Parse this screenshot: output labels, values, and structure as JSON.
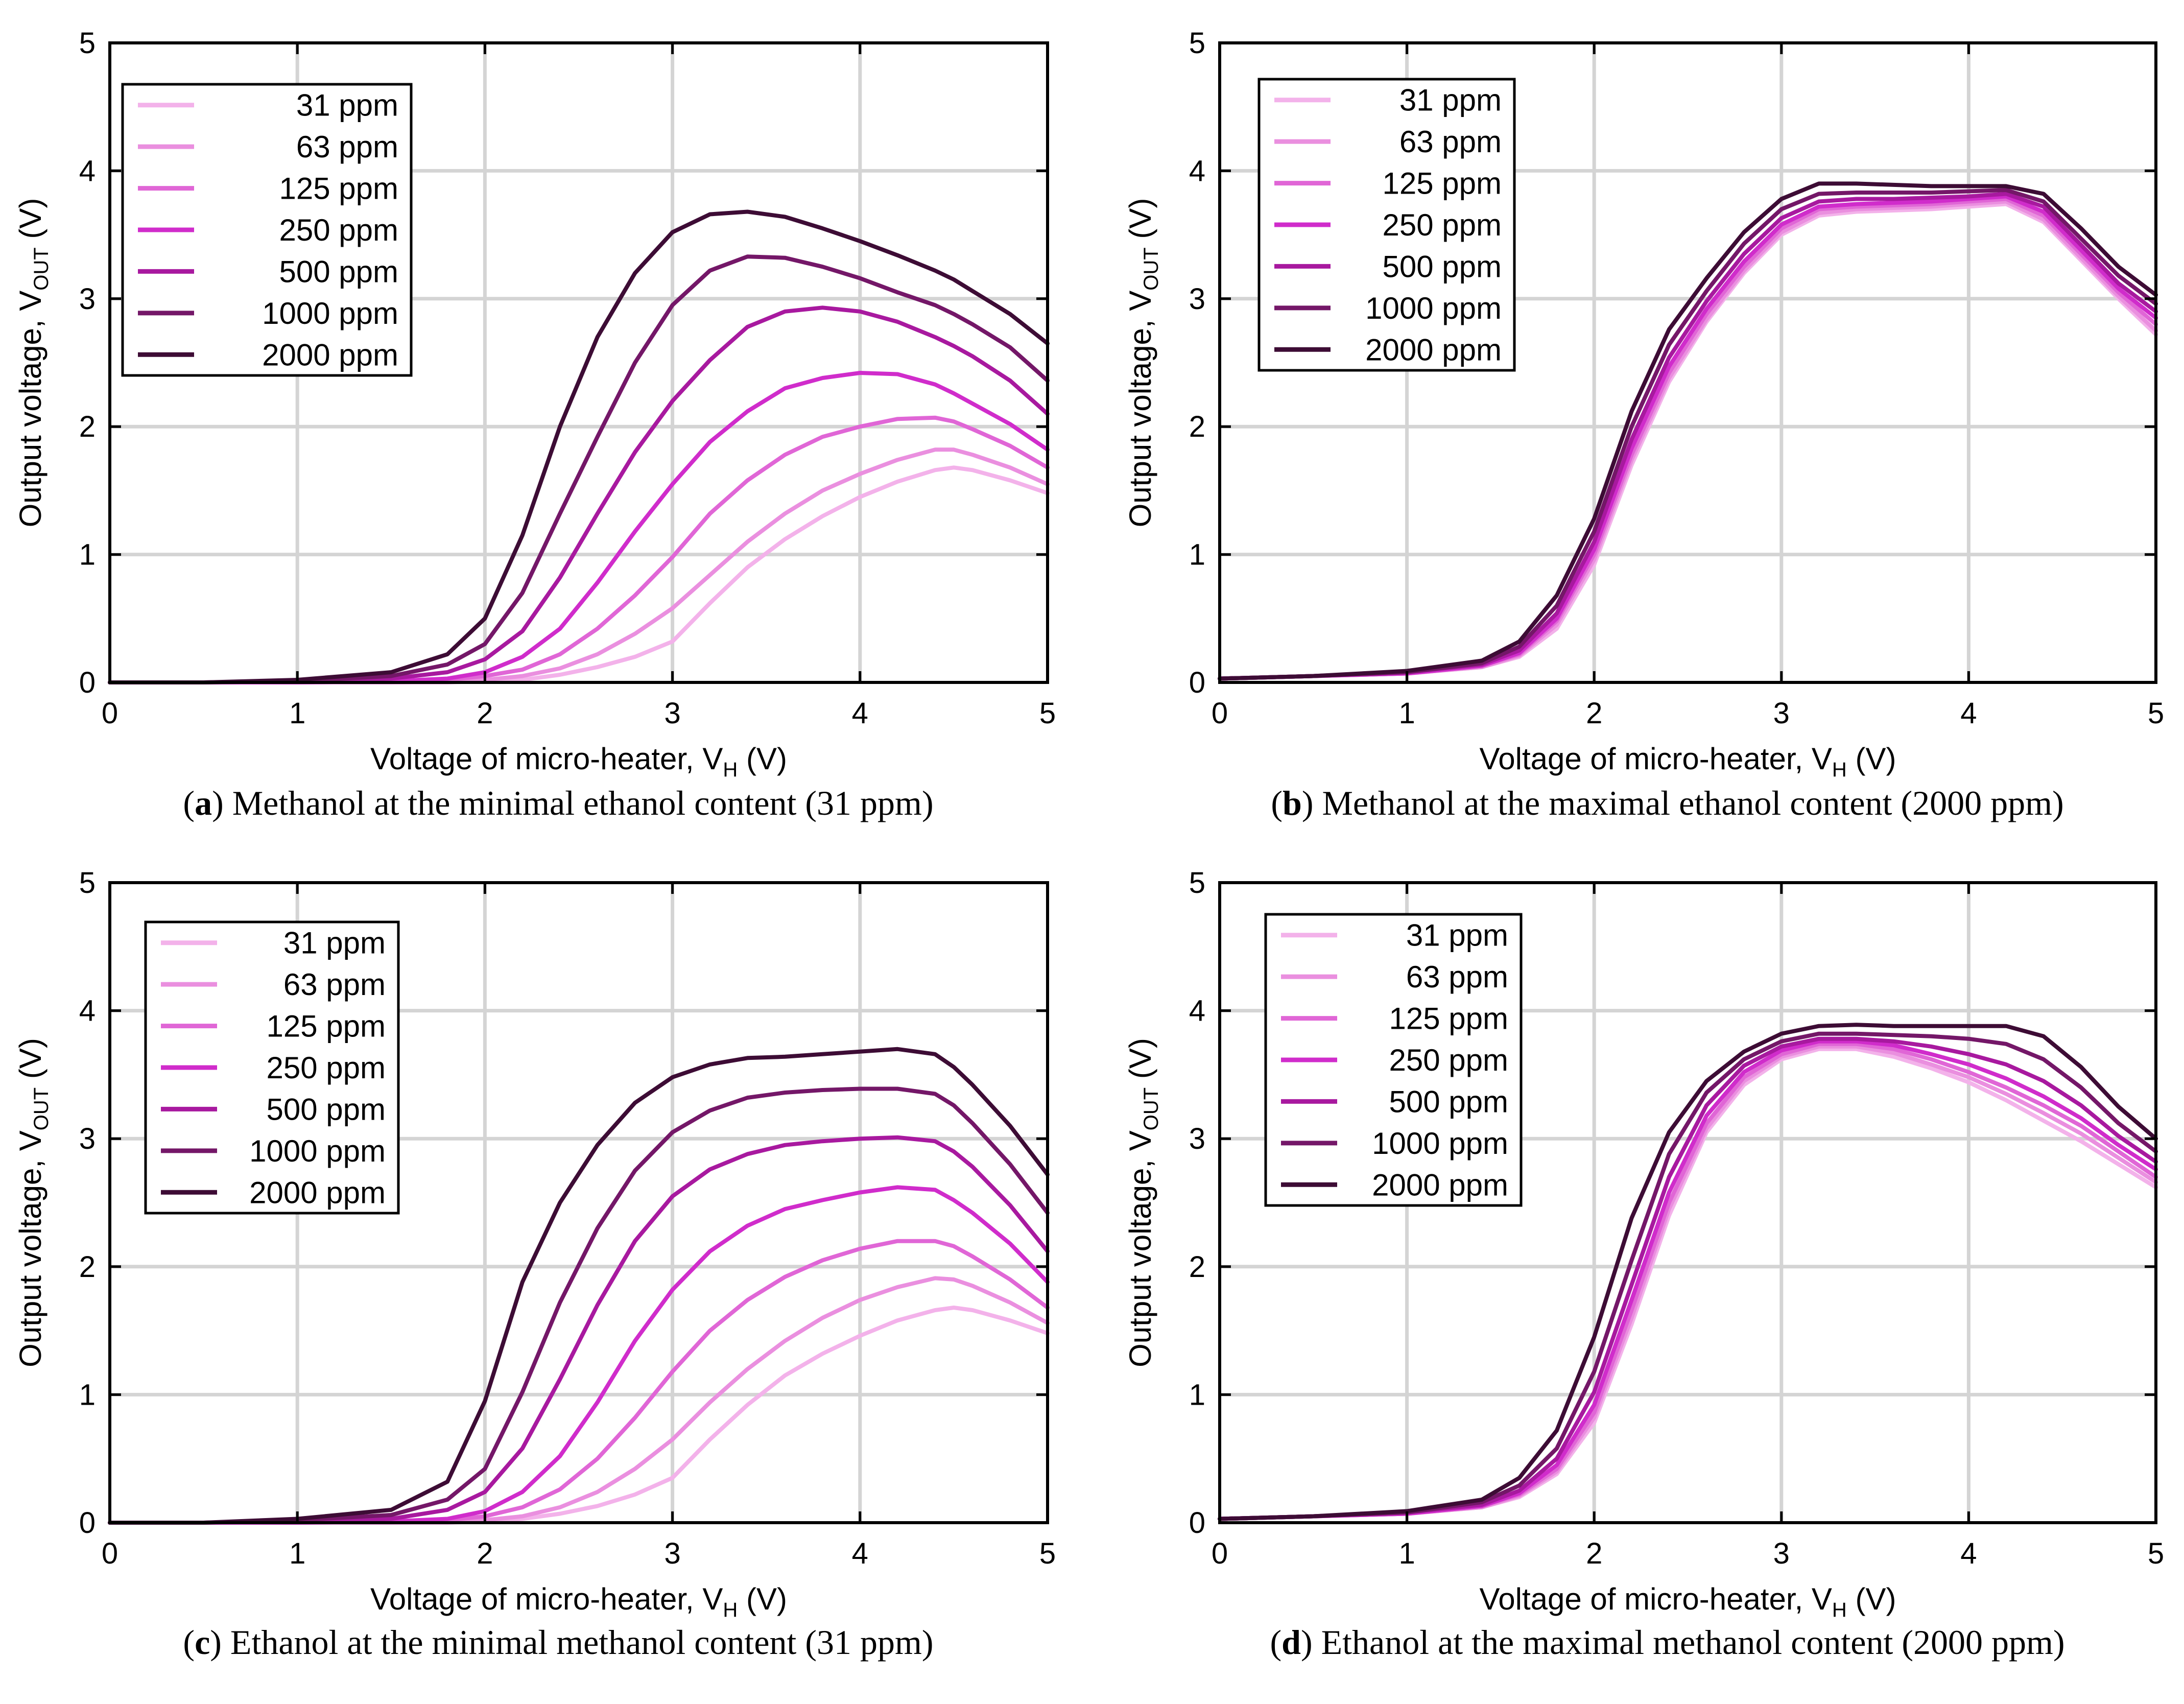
{
  "colors": {
    "ppm31": "#f3b2ea",
    "ppm63": "#ea8fdf",
    "ppm125": "#e066d6",
    "ppm250": "#d02ccb",
    "ppm500": "#a8199f",
    "ppm1000": "#741768",
    "ppm2000": "#3d0c35",
    "grid": "#d4d4d4",
    "axis": "#000000"
  },
  "chart_data": [
    {
      "type": "line",
      "panel_letter": "a",
      "caption": "Methanol at the minimal ethanol content (31 ppm)",
      "xlabel": "Voltage of micro-heater, V",
      "xlabel_sub": "H",
      "xlabel_tail": " (V)",
      "ylabel": "Output voltage,  V",
      "ylabel_sub": "OUT",
      "ylabel_tail": " (V)",
      "xlim": [
        0,
        5
      ],
      "ylim": [
        0,
        5
      ],
      "xticks": [
        "0",
        "1",
        "2",
        "3",
        "4",
        "5"
      ],
      "yticks": [
        "0",
        "1",
        "2",
        "3",
        "4",
        "5"
      ],
      "grid": true,
      "legend_position": "top-left",
      "x": [
        0,
        0.5,
        1.0,
        1.5,
        1.8,
        2.0,
        2.2,
        2.4,
        2.6,
        2.8,
        3.0,
        3.2,
        3.4,
        3.6,
        3.8,
        4.0,
        4.2,
        4.4,
        4.5,
        4.6,
        4.8,
        5.0
      ],
      "series": [
        {
          "name": "31 ppm",
          "values": [
            0,
            0,
            0,
            0,
            0,
            0.01,
            0.02,
            0.06,
            0.12,
            0.2,
            0.32,
            0.62,
            0.9,
            1.12,
            1.3,
            1.45,
            1.57,
            1.66,
            1.68,
            1.66,
            1.58,
            1.48
          ]
        },
        {
          "name": "63 ppm",
          "values": [
            0,
            0,
            0,
            0,
            0.01,
            0.02,
            0.05,
            0.11,
            0.22,
            0.38,
            0.58,
            0.84,
            1.1,
            1.32,
            1.5,
            1.63,
            1.74,
            1.82,
            1.82,
            1.78,
            1.68,
            1.55
          ]
        },
        {
          "name": "125 ppm",
          "values": [
            0,
            0,
            0,
            0.01,
            0.02,
            0.05,
            0.1,
            0.22,
            0.42,
            0.68,
            0.98,
            1.32,
            1.58,
            1.78,
            1.92,
            2.0,
            2.06,
            2.07,
            2.04,
            1.98,
            1.85,
            1.68
          ]
        },
        {
          "name": "250 ppm",
          "values": [
            0,
            0,
            0,
            0.01,
            0.03,
            0.08,
            0.2,
            0.42,
            0.78,
            1.18,
            1.55,
            1.88,
            2.12,
            2.3,
            2.38,
            2.42,
            2.41,
            2.33,
            2.26,
            2.18,
            2.02,
            1.82
          ]
        },
        {
          "name": "500 ppm",
          "values": [
            0,
            0,
            0.01,
            0.03,
            0.08,
            0.18,
            0.4,
            0.82,
            1.32,
            1.8,
            2.2,
            2.52,
            2.78,
            2.9,
            2.93,
            2.9,
            2.82,
            2.7,
            2.63,
            2.55,
            2.36,
            2.1
          ]
        },
        {
          "name": "1000 ppm",
          "values": [
            0,
            0,
            0.01,
            0.05,
            0.14,
            0.3,
            0.7,
            1.32,
            1.92,
            2.5,
            2.95,
            3.22,
            3.33,
            3.32,
            3.25,
            3.16,
            3.05,
            2.95,
            2.88,
            2.8,
            2.62,
            2.36
          ]
        },
        {
          "name": "2000 ppm",
          "values": [
            0,
            0,
            0.02,
            0.08,
            0.22,
            0.5,
            1.15,
            2.0,
            2.7,
            3.2,
            3.52,
            3.66,
            3.68,
            3.64,
            3.55,
            3.45,
            3.34,
            3.22,
            3.15,
            3.06,
            2.88,
            2.65
          ]
        }
      ]
    },
    {
      "type": "line",
      "panel_letter": "b",
      "caption": "Methanol at the maximal ethanol content (2000 ppm)",
      "xlabel": "Voltage of micro-heater, V",
      "xlabel_sub": "H",
      "xlabel_tail": " (V)",
      "ylabel": "Output voltage,  V",
      "ylabel_sub": "OUT",
      "ylabel_tail": " (V)",
      "xlim": [
        0,
        5
      ],
      "ylim": [
        0,
        5
      ],
      "xticks": [
        "0",
        "1",
        "2",
        "3",
        "4",
        "5"
      ],
      "yticks": [
        "0",
        "1",
        "2",
        "3",
        "4",
        "5"
      ],
      "grid": true,
      "legend_position": "top-left",
      "x": [
        0,
        0.5,
        1.0,
        1.4,
        1.6,
        1.8,
        2.0,
        2.2,
        2.4,
        2.6,
        2.8,
        3.0,
        3.2,
        3.4,
        3.6,
        3.8,
        4.0,
        4.2,
        4.4,
        4.6,
        4.8,
        5.0
      ],
      "series": [
        {
          "name": "31 ppm",
          "values": [
            0.03,
            0.05,
            0.07,
            0.12,
            0.2,
            0.42,
            0.92,
            1.7,
            2.35,
            2.82,
            3.2,
            3.5,
            3.65,
            3.68,
            3.69,
            3.7,
            3.72,
            3.74,
            3.6,
            3.3,
            3.0,
            2.72
          ]
        },
        {
          "name": "63 ppm",
          "values": [
            0.03,
            0.05,
            0.07,
            0.12,
            0.21,
            0.45,
            0.96,
            1.74,
            2.38,
            2.84,
            3.22,
            3.52,
            3.67,
            3.7,
            3.71,
            3.72,
            3.74,
            3.76,
            3.62,
            3.32,
            3.02,
            2.75
          ]
        },
        {
          "name": "125 ppm",
          "values": [
            0.03,
            0.05,
            0.07,
            0.13,
            0.22,
            0.48,
            1.0,
            1.78,
            2.42,
            2.88,
            3.25,
            3.55,
            3.7,
            3.72,
            3.73,
            3.74,
            3.76,
            3.78,
            3.65,
            3.35,
            3.05,
            2.8
          ]
        },
        {
          "name": "250 ppm",
          "values": [
            0.03,
            0.05,
            0.07,
            0.13,
            0.23,
            0.5,
            1.04,
            1.83,
            2.47,
            2.92,
            3.29,
            3.58,
            3.72,
            3.74,
            3.75,
            3.76,
            3.78,
            3.8,
            3.68,
            3.38,
            3.08,
            2.85
          ]
        },
        {
          "name": "500 ppm",
          "values": [
            0.03,
            0.05,
            0.08,
            0.14,
            0.25,
            0.54,
            1.1,
            1.9,
            2.54,
            2.98,
            3.35,
            3.63,
            3.76,
            3.78,
            3.78,
            3.79,
            3.8,
            3.82,
            3.72,
            3.42,
            3.12,
            2.9
          ]
        },
        {
          "name": "1000 ppm",
          "values": [
            0.03,
            0.05,
            0.08,
            0.15,
            0.28,
            0.6,
            1.18,
            2.0,
            2.64,
            3.06,
            3.43,
            3.7,
            3.82,
            3.83,
            3.83,
            3.83,
            3.84,
            3.85,
            3.76,
            3.47,
            3.18,
            2.96
          ]
        },
        {
          "name": "2000 ppm",
          "values": [
            0.03,
            0.05,
            0.09,
            0.17,
            0.32,
            0.68,
            1.28,
            2.12,
            2.76,
            3.16,
            3.52,
            3.78,
            3.9,
            3.9,
            3.89,
            3.88,
            3.88,
            3.88,
            3.82,
            3.55,
            3.25,
            3.03
          ]
        }
      ]
    },
    {
      "type": "line",
      "panel_letter": "c",
      "caption": "Ethanol at the minimal methanol content (31 ppm)",
      "xlabel": "Voltage of micro-heater, V",
      "xlabel_sub": "H",
      "xlabel_tail": " (V)",
      "ylabel": "Output voltage,  V",
      "ylabel_sub": "OUT",
      "ylabel_tail": " (V)",
      "xlim": [
        0,
        5
      ],
      "ylim": [
        0,
        5
      ],
      "xticks": [
        "0",
        "1",
        "2",
        "3",
        "4",
        "5"
      ],
      "yticks": [
        "0",
        "1",
        "2",
        "3",
        "4",
        "5"
      ],
      "grid": true,
      "legend_position": "top-left",
      "x": [
        0,
        0.5,
        1.0,
        1.5,
        1.8,
        2.0,
        2.2,
        2.4,
        2.6,
        2.8,
        3.0,
        3.2,
        3.4,
        3.6,
        3.8,
        4.0,
        4.2,
        4.4,
        4.5,
        4.6,
        4.8,
        5.0
      ],
      "series": [
        {
          "name": "31 ppm",
          "values": [
            0,
            0,
            0,
            0,
            0,
            0.01,
            0.03,
            0.07,
            0.13,
            0.22,
            0.35,
            0.65,
            0.92,
            1.15,
            1.32,
            1.46,
            1.58,
            1.66,
            1.68,
            1.66,
            1.58,
            1.48
          ]
        },
        {
          "name": "63 ppm",
          "values": [
            0,
            0,
            0,
            0,
            0.01,
            0.02,
            0.05,
            0.12,
            0.24,
            0.42,
            0.65,
            0.94,
            1.2,
            1.42,
            1.6,
            1.74,
            1.84,
            1.91,
            1.9,
            1.85,
            1.72,
            1.56
          ]
        },
        {
          "name": "125 ppm",
          "values": [
            0,
            0,
            0,
            0.01,
            0.02,
            0.05,
            0.12,
            0.26,
            0.5,
            0.82,
            1.18,
            1.5,
            1.74,
            1.92,
            2.05,
            2.14,
            2.2,
            2.2,
            2.16,
            2.08,
            1.9,
            1.68
          ]
        },
        {
          "name": "250 ppm",
          "values": [
            0,
            0,
            0,
            0.01,
            0.03,
            0.09,
            0.24,
            0.52,
            0.94,
            1.42,
            1.82,
            2.12,
            2.32,
            2.45,
            2.52,
            2.58,
            2.62,
            2.6,
            2.52,
            2.42,
            2.18,
            1.88
          ]
        },
        {
          "name": "500 ppm",
          "values": [
            0,
            0,
            0.01,
            0.03,
            0.1,
            0.24,
            0.58,
            1.12,
            1.7,
            2.2,
            2.55,
            2.76,
            2.88,
            2.95,
            2.98,
            3.0,
            3.01,
            2.98,
            2.9,
            2.78,
            2.48,
            2.12
          ]
        },
        {
          "name": "1000 ppm",
          "values": [
            0,
            0,
            0.02,
            0.06,
            0.18,
            0.42,
            1.02,
            1.72,
            2.3,
            2.75,
            3.05,
            3.22,
            3.32,
            3.36,
            3.38,
            3.39,
            3.39,
            3.35,
            3.26,
            3.12,
            2.8,
            2.42
          ]
        },
        {
          "name": "2000 ppm",
          "values": [
            0,
            0,
            0.03,
            0.1,
            0.32,
            0.95,
            1.88,
            2.5,
            2.95,
            3.28,
            3.48,
            3.58,
            3.63,
            3.64,
            3.66,
            3.68,
            3.7,
            3.66,
            3.56,
            3.42,
            3.1,
            2.72
          ]
        }
      ]
    },
    {
      "type": "line",
      "panel_letter": "d",
      "caption": "Ethanol at the maximal methanol content (2000 ppm)",
      "xlabel": "Voltage of micro-heater, V",
      "xlabel_sub": "H",
      "xlabel_tail": " (V)",
      "ylabel": "Output voltage,  V",
      "ylabel_sub": "OUT",
      "ylabel_tail": " (V)",
      "xlim": [
        0,
        5
      ],
      "ylim": [
        0,
        5
      ],
      "xticks": [
        "0",
        "1",
        "2",
        "3",
        "4",
        "5"
      ],
      "yticks": [
        "0",
        "1",
        "2",
        "3",
        "4",
        "5"
      ],
      "grid": true,
      "legend_position": "top-left",
      "x": [
        0,
        0.5,
        1.0,
        1.4,
        1.6,
        1.8,
        2.0,
        2.2,
        2.4,
        2.6,
        2.8,
        3.0,
        3.2,
        3.4,
        3.6,
        3.8,
        4.0,
        4.2,
        4.4,
        4.6,
        4.8,
        5.0
      ],
      "series": [
        {
          "name": "31 ppm",
          "values": [
            0.03,
            0.05,
            0.07,
            0.12,
            0.2,
            0.38,
            0.78,
            1.55,
            2.4,
            3.05,
            3.42,
            3.62,
            3.7,
            3.7,
            3.64,
            3.55,
            3.44,
            3.3,
            3.14,
            2.98,
            2.8,
            2.62
          ]
        },
        {
          "name": "63 ppm",
          "values": [
            0.03,
            0.05,
            0.07,
            0.12,
            0.21,
            0.4,
            0.82,
            1.6,
            2.45,
            3.08,
            3.45,
            3.64,
            3.72,
            3.72,
            3.67,
            3.58,
            3.48,
            3.35,
            3.2,
            3.04,
            2.85,
            2.66
          ]
        },
        {
          "name": "125 ppm",
          "values": [
            0.03,
            0.05,
            0.07,
            0.13,
            0.22,
            0.42,
            0.86,
            1.66,
            2.5,
            3.12,
            3.48,
            3.66,
            3.74,
            3.74,
            3.7,
            3.62,
            3.52,
            3.4,
            3.26,
            3.1,
            2.9,
            2.7
          ]
        },
        {
          "name": "250 ppm",
          "values": [
            0.03,
            0.05,
            0.07,
            0.13,
            0.23,
            0.45,
            0.92,
            1.74,
            2.58,
            3.18,
            3.52,
            3.69,
            3.76,
            3.76,
            3.73,
            3.66,
            3.58,
            3.47,
            3.33,
            3.16,
            2.95,
            2.76
          ]
        },
        {
          "name": "500 ppm",
          "values": [
            0.03,
            0.05,
            0.08,
            0.14,
            0.25,
            0.5,
            1.02,
            1.86,
            2.7,
            3.26,
            3.57,
            3.72,
            3.78,
            3.78,
            3.76,
            3.72,
            3.66,
            3.58,
            3.45,
            3.26,
            3.02,
            2.82
          ]
        },
        {
          "name": "1000 ppm",
          "values": [
            0.03,
            0.05,
            0.08,
            0.16,
            0.29,
            0.58,
            1.18,
            2.05,
            2.88,
            3.36,
            3.62,
            3.76,
            3.82,
            3.82,
            3.81,
            3.8,
            3.78,
            3.74,
            3.62,
            3.4,
            3.12,
            2.9
          ]
        },
        {
          "name": "2000 ppm",
          "values": [
            0.03,
            0.05,
            0.09,
            0.18,
            0.35,
            0.72,
            1.45,
            2.38,
            3.05,
            3.45,
            3.68,
            3.82,
            3.88,
            3.89,
            3.88,
            3.88,
            3.88,
            3.88,
            3.8,
            3.56,
            3.25,
            3.0
          ]
        }
      ]
    }
  ]
}
